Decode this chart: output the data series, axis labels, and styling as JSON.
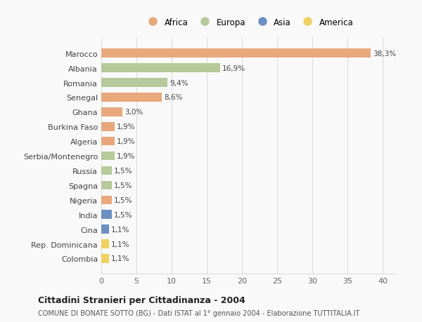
{
  "countries": [
    "Marocco",
    "Albania",
    "Romania",
    "Senegal",
    "Ghana",
    "Burkina Faso",
    "Algeria",
    "Serbia/Montenegro",
    "Russia",
    "Spagna",
    "Nigeria",
    "India",
    "Cina",
    "Rep. Dominicana",
    "Colombia"
  ],
  "values": [
    38.3,
    16.9,
    9.4,
    8.6,
    3.0,
    1.9,
    1.9,
    1.9,
    1.5,
    1.5,
    1.5,
    1.5,
    1.1,
    1.1,
    1.1
  ],
  "labels": [
    "38,3%",
    "16,9%",
    "9,4%",
    "8,6%",
    "3,0%",
    "1,9%",
    "1,9%",
    "1,9%",
    "1,5%",
    "1,5%",
    "1,5%",
    "1,5%",
    "1,1%",
    "1,1%",
    "1,1%"
  ],
  "continents": [
    "Africa",
    "Europa",
    "Europa",
    "Africa",
    "Africa",
    "Africa",
    "Africa",
    "Europa",
    "Europa",
    "Europa",
    "Africa",
    "Asia",
    "Asia",
    "America",
    "America"
  ],
  "colors": {
    "Africa": "#E8A87C",
    "Europa": "#B5C99A",
    "Asia": "#6B8FC2",
    "America": "#F0D060"
  },
  "xlim": [
    0,
    42
  ],
  "xticks": [
    0,
    5,
    10,
    15,
    20,
    25,
    30,
    35,
    40
  ],
  "title": "Cittadini Stranieri per Cittadinanza - 2004",
  "subtitle": "COMUNE DI BONATE SOTTO (BG) - Dati ISTAT al 1° gennaio 2004 - Elaborazione TUTTITALIA.IT",
  "background_color": "#f9f9f9",
  "grid_color": "#dddddd",
  "legend_order": [
    "Africa",
    "Europa",
    "Asia",
    "America"
  ]
}
